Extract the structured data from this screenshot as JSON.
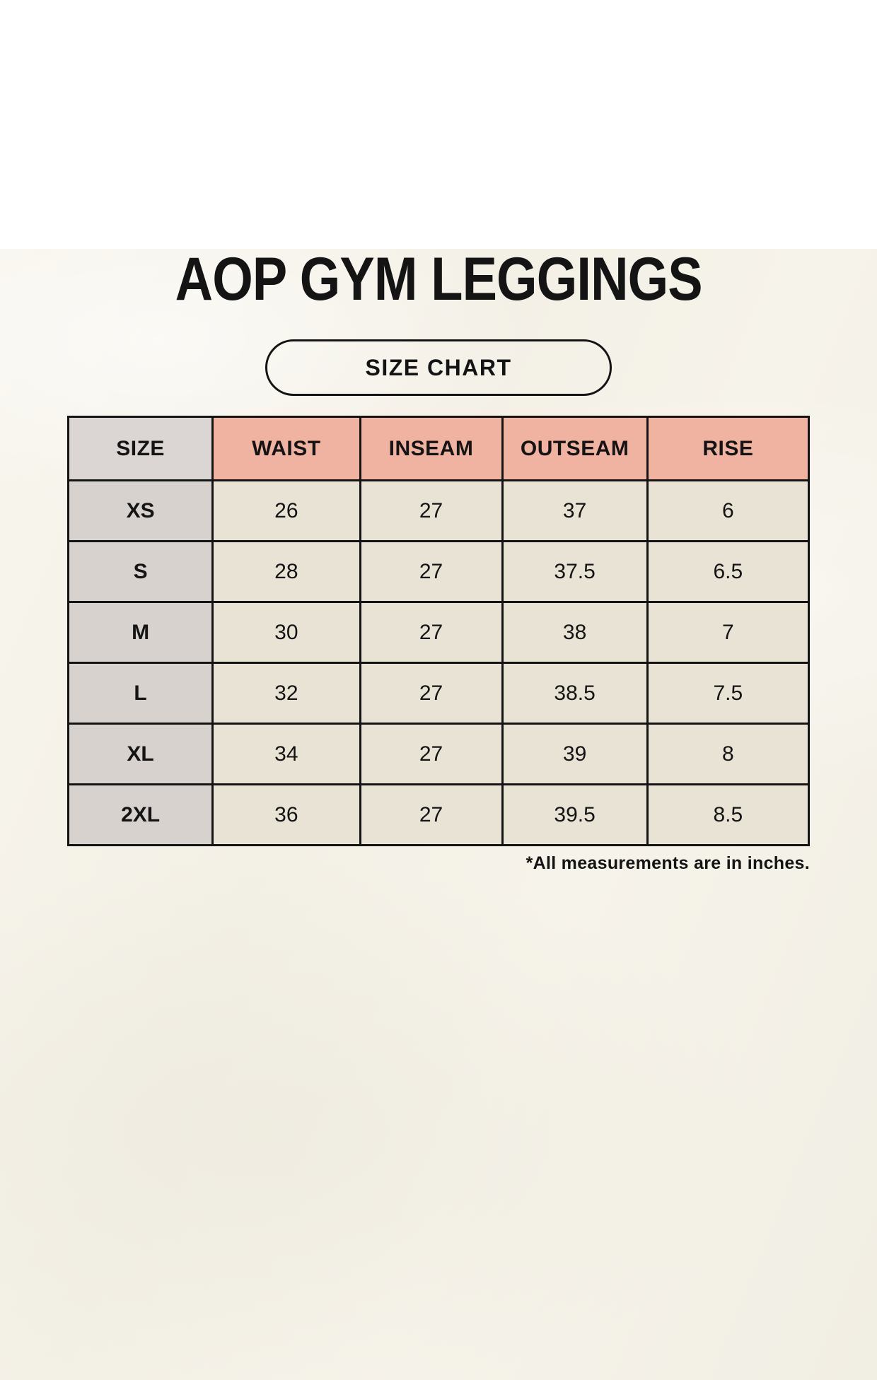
{
  "title": "AOP GYM LEGGINGS",
  "badge_label": "SIZE CHART",
  "footnote": "*All measurements are in inches.",
  "colors": {
    "background": "#f5f2e9",
    "header_accent": "#f0b3a1",
    "size_column": "#d8d2cf",
    "size_header": "#dbd5d3",
    "cell": "#e9e3d6",
    "border": "#141414",
    "text": "#141414"
  },
  "chart_data": {
    "type": "table",
    "title": "AOP GYM LEGGINGS — SIZE CHART",
    "units": "inches",
    "headers": [
      "SIZE",
      "WAIST",
      "INSEAM",
      "OUTSEAM",
      "RISE"
    ],
    "rows": [
      [
        "XS",
        "26",
        "27",
        "37",
        "6"
      ],
      [
        "S",
        "28",
        "27",
        "37.5",
        "6.5"
      ],
      [
        "M",
        "30",
        "27",
        "38",
        "7"
      ],
      [
        "L",
        "32",
        "27",
        "38.5",
        "7.5"
      ],
      [
        "XL",
        "34",
        "27",
        "39",
        "8"
      ],
      [
        "2XL",
        "36",
        "27",
        "39.5",
        "8.5"
      ]
    ]
  }
}
